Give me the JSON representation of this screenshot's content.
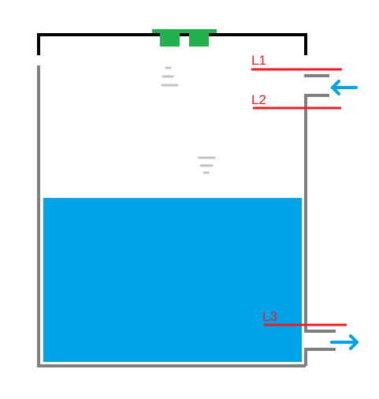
{
  "labels": {
    "l1": "L1",
    "l2": "L2",
    "l3": "L3"
  },
  "colors": {
    "wall": "#7f7f7f",
    "lid": "#000000",
    "water": "#00a2e8",
    "sensor": "#ed1c24",
    "arrow": "#00a2e8",
    "vent": "#22b14c",
    "drop": "#c3c3c3"
  },
  "icons": {
    "inlet": "arrow-left-icon",
    "outlet": "arrow-right-icon",
    "level_marks": "water-level-icon"
  }
}
